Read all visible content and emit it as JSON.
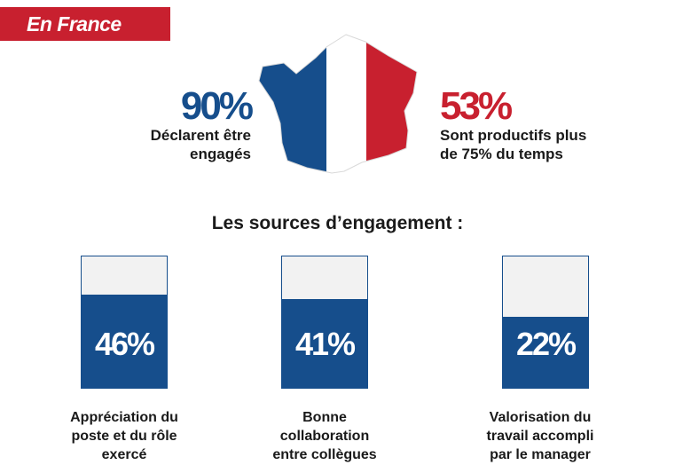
{
  "banner": {
    "label": "En France"
  },
  "colors": {
    "blue": "#164e8c",
    "red": "#c8202f",
    "white": "#ffffff"
  },
  "map": {
    "icon": "france-flag-map-icon"
  },
  "stats": {
    "left": {
      "value": "90%",
      "line1": "Déclarent être",
      "line2": "engagés"
    },
    "right": {
      "value": "53%",
      "line1": "Sont productifs plus",
      "line2": "de 75% du temps"
    }
  },
  "chart_data": {
    "type": "bar",
    "title": "Les sources d’engagement :",
    "ylim": [
      0,
      100
    ],
    "grid": false,
    "categories": [
      [
        "Appréciation du",
        "poste et du rôle",
        "exercé"
      ],
      [
        "Bonne",
        "collaboration",
        "entre collègues"
      ],
      [
        "Valorisation du",
        "travail accompli",
        "par le manager"
      ]
    ],
    "values": [
      46,
      41,
      22
    ],
    "labels": [
      "46%",
      "41%",
      "22%"
    ]
  }
}
